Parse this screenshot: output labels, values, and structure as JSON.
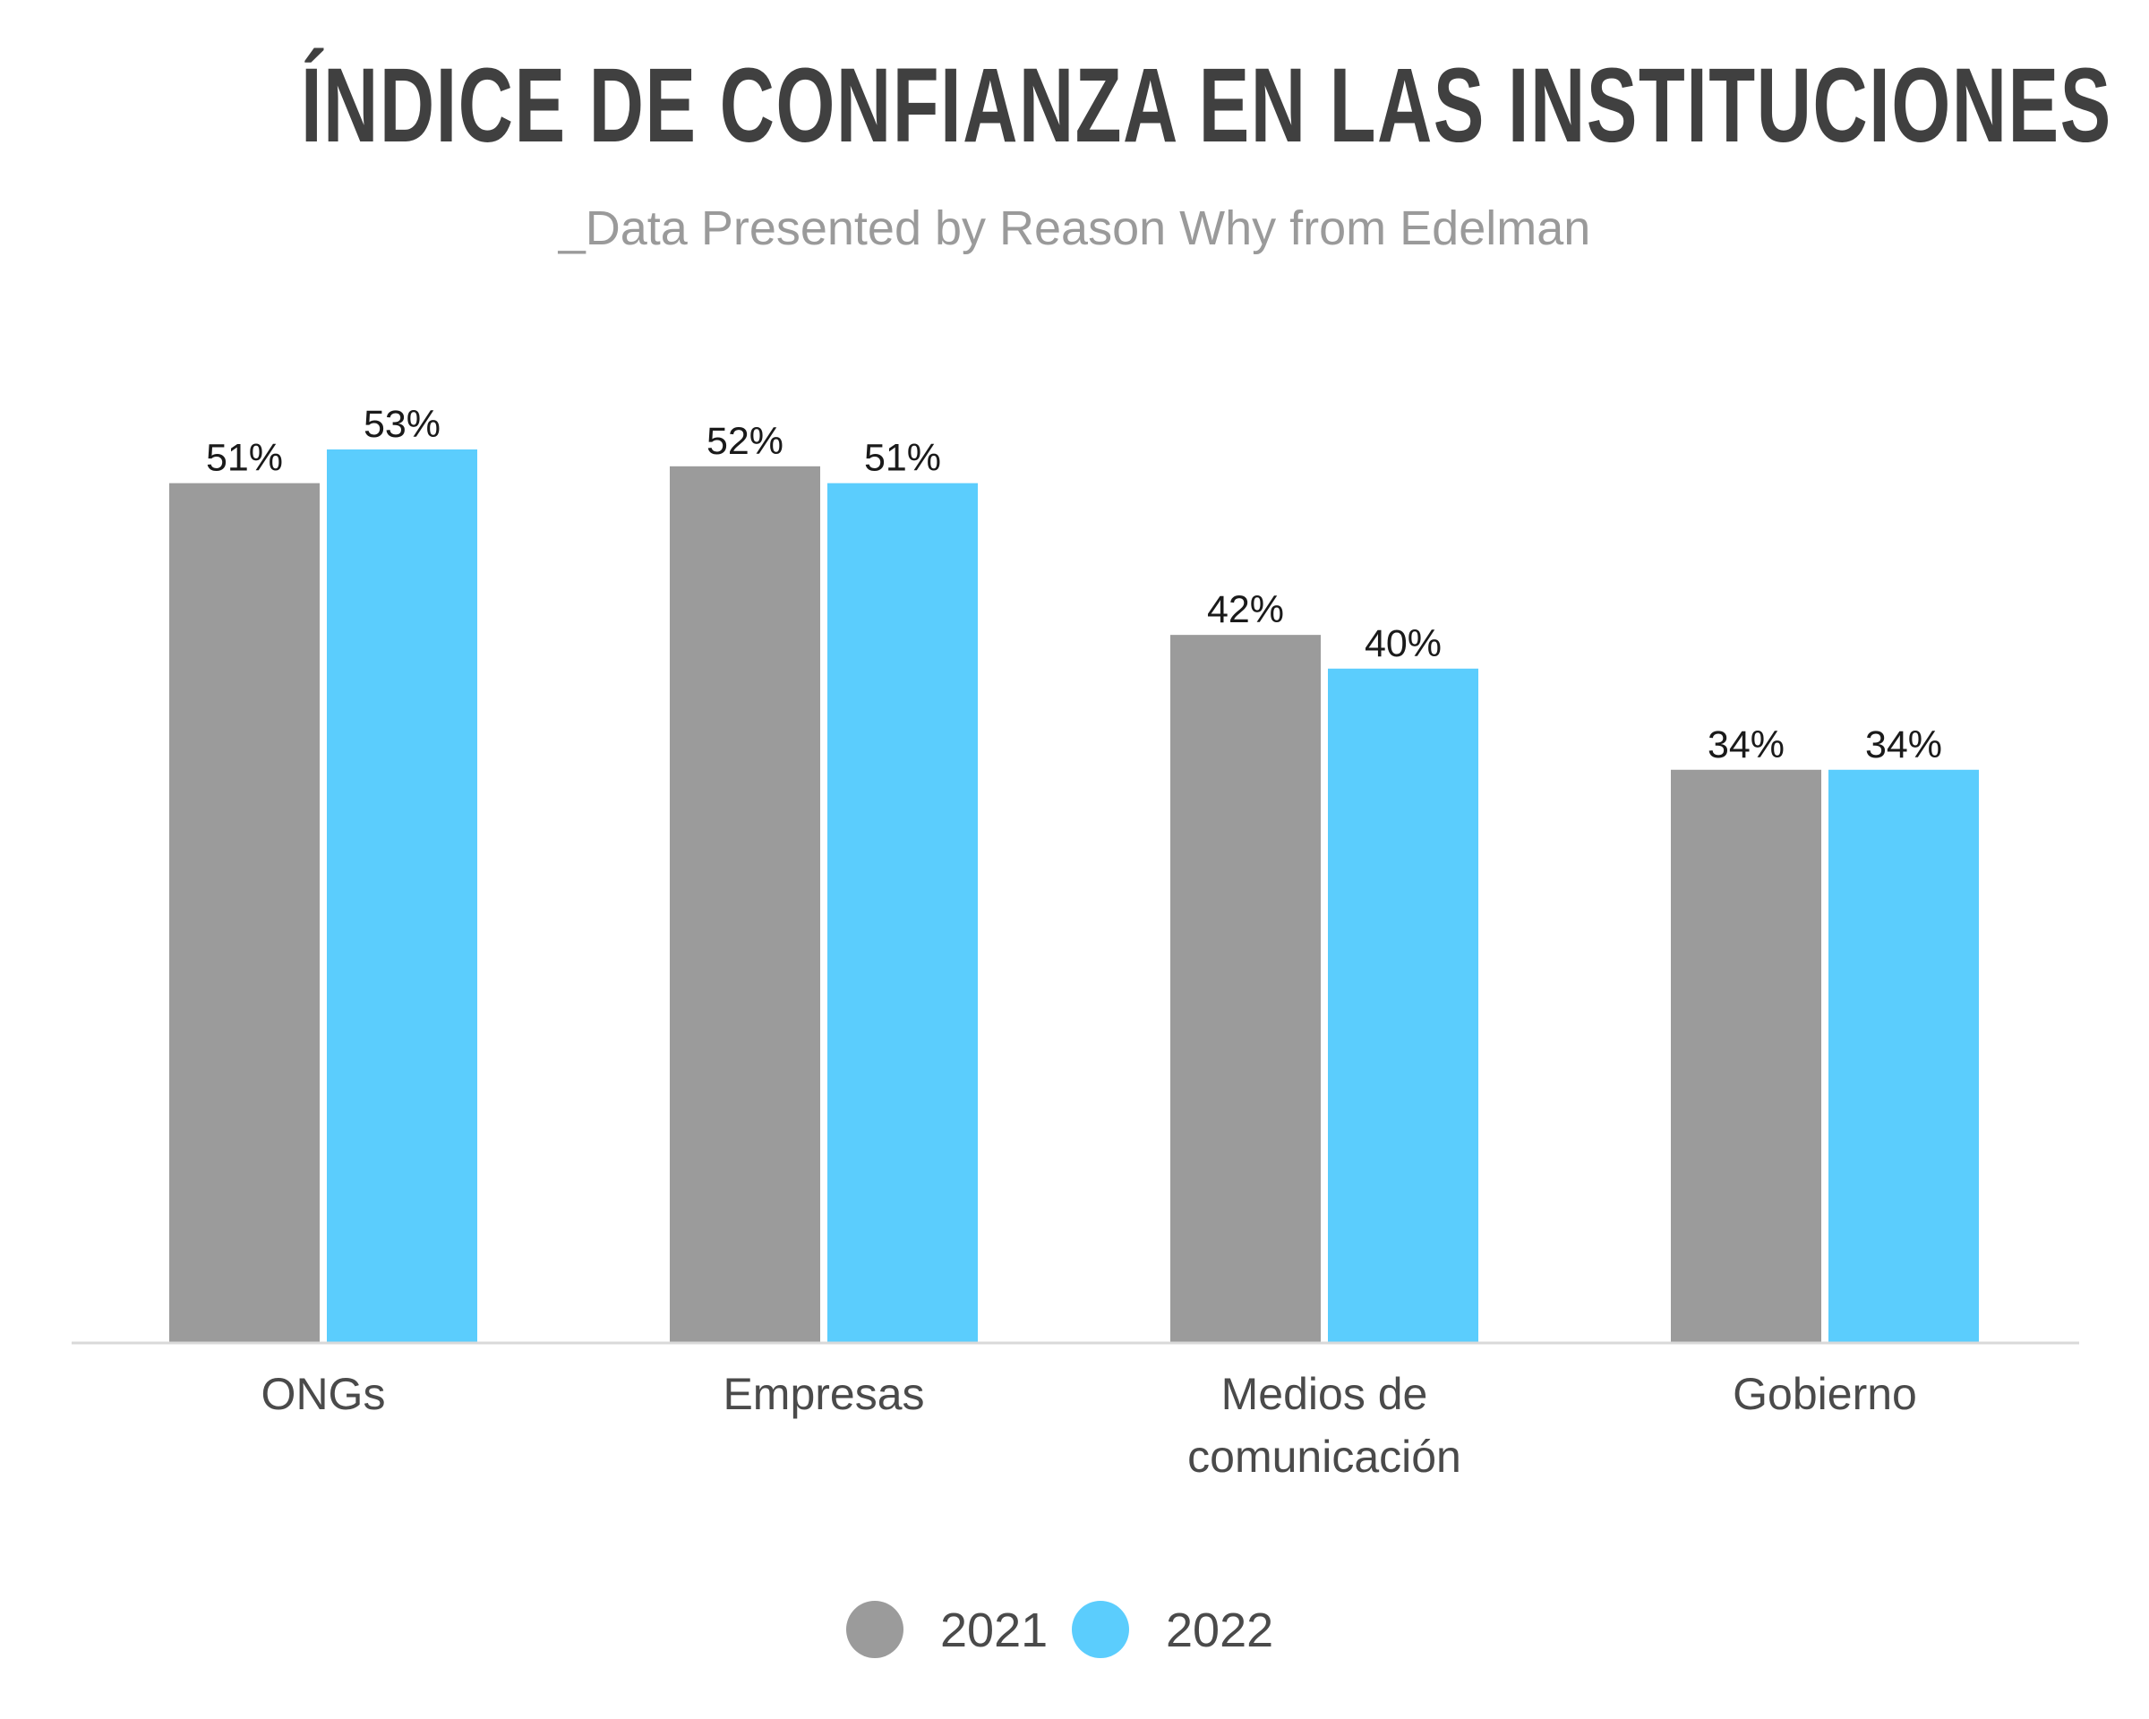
{
  "chart_data": {
    "type": "bar",
    "title": "ÍNDICE DE CONFIANZA EN LAS INSTITUCIONES",
    "subtitle": "_Data Presented by Reason Why from Edelman",
    "categories": [
      [
        "ONGs"
      ],
      [
        "Empresas"
      ],
      [
        "Medios de",
        "comunicación"
      ],
      [
        "Gobierno"
      ]
    ],
    "series": [
      {
        "name": "2021",
        "color": "#9b9b9b",
        "values": [
          51,
          52,
          42,
          34
        ],
        "labels": [
          "51%",
          "52%",
          "42%",
          "34%"
        ]
      },
      {
        "name": "2022",
        "color": "#5bcdfd",
        "values": [
          53,
          51,
          40,
          34
        ],
        "labels": [
          "53%",
          "51%",
          "40%",
          "34%"
        ]
      }
    ],
    "ylim": [
      0,
      53
    ],
    "grid": false,
    "legend_position": "bottom-center",
    "axis_color": "#d9d9d9"
  }
}
